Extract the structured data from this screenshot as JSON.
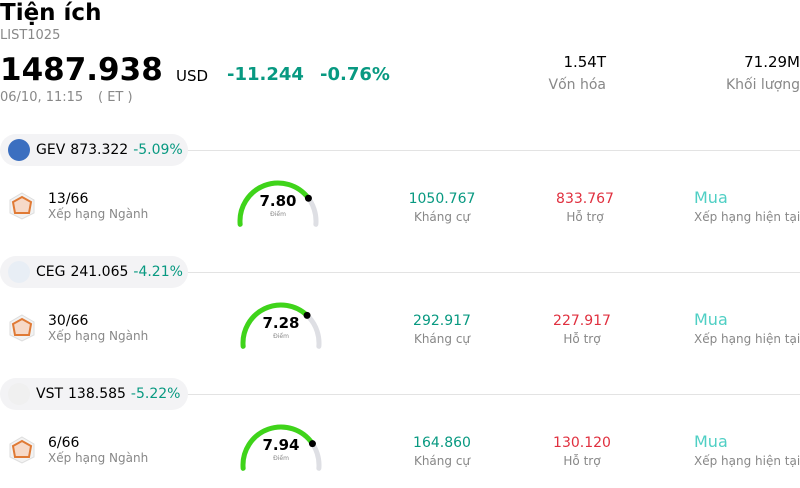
{
  "header": {
    "title": "Tiện ích",
    "code": "LIST1025",
    "price": "1487.938",
    "currency": "USD",
    "change": "-11.244",
    "change_pct": "-0.76%",
    "time": "06/10, 11:15",
    "timezone": "( ET )",
    "stats": [
      {
        "value": "1.54T",
        "label": "Vốn hóa"
      },
      {
        "value": "71.29M",
        "label": "Khối lượng"
      }
    ]
  },
  "items": [
    {
      "ticker": "GEV",
      "price": "873.322",
      "change_pct": "-5.09%",
      "rank": "13/66",
      "rank_label": "Xếp hạng Ngành",
      "score": "7.80",
      "score_label": "Điểm",
      "resistance": "1050.767",
      "resistance_label": "Kháng cự",
      "support": "833.767",
      "support_label": "Hỗ trợ",
      "rating": "Mua",
      "rating_label": "Xếp hạng hiện tại"
    },
    {
      "ticker": "CEG",
      "price": "241.065",
      "change_pct": "-4.21%",
      "rank": "30/66",
      "rank_label": "Xếp hạng Ngành",
      "score": "7.28",
      "score_label": "Điểm",
      "resistance": "292.917",
      "resistance_label": "Kháng cự",
      "support": "227.917",
      "support_label": "Hỗ trợ",
      "rating": "Mua",
      "rating_label": "Xếp hạng hiện tại"
    },
    {
      "ticker": "VST",
      "price": "138.585",
      "change_pct": "-5.22%",
      "rank": "6/66",
      "rank_label": "Xếp hạng Ngành",
      "score": "7.94",
      "score_label": "Điểm",
      "resistance": "164.860",
      "resistance_label": "Kháng cự",
      "support": "130.120",
      "support_label": "Hỗ trợ",
      "rating": "Mua",
      "rating_label": "Xếp hạng hiện tại"
    }
  ]
}
